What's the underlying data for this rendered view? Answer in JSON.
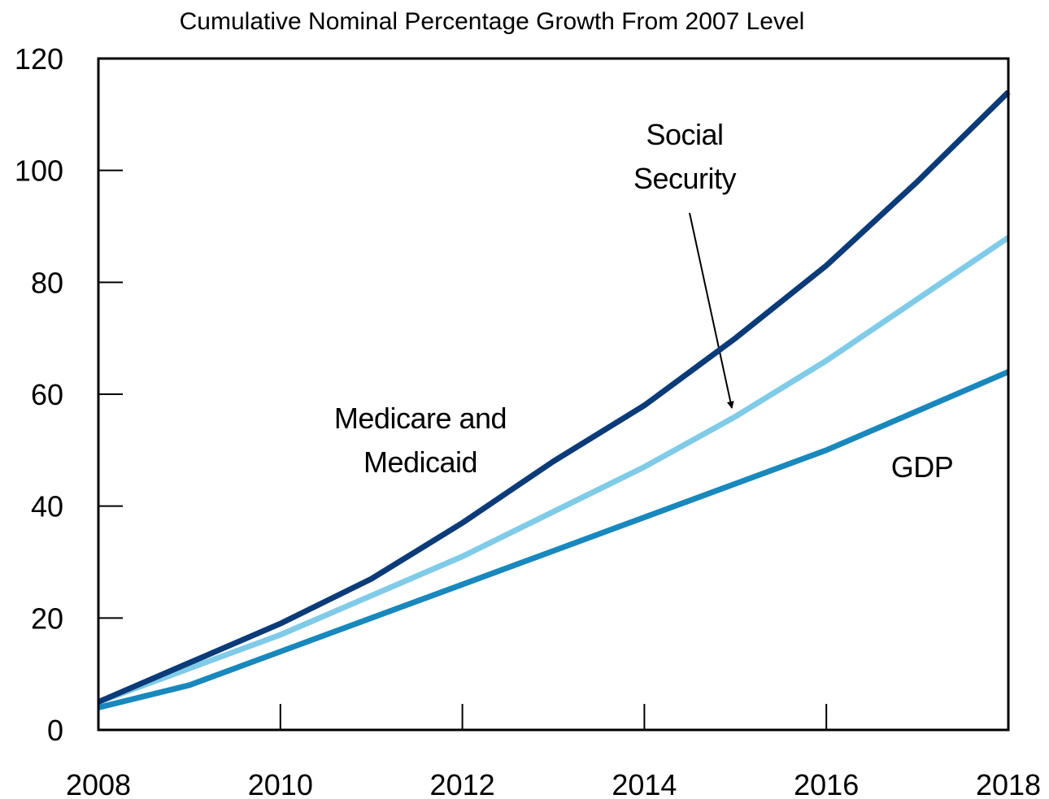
{
  "chart_data": {
    "type": "line",
    "title": "Cumulative Nominal Percentage Growth From 2007 Level",
    "x": [
      2008,
      2009,
      2010,
      2011,
      2012,
      2013,
      2014,
      2015,
      2016,
      2017,
      2018
    ],
    "xlim": [
      2008,
      2018
    ],
    "xticks": [
      2008,
      2010,
      2012,
      2014,
      2016,
      2018
    ],
    "ylim": [
      0,
      120
    ],
    "yticks": [
      0,
      20,
      40,
      60,
      80,
      100,
      120
    ],
    "grid": false,
    "series": [
      {
        "name": "Medicare and Medicaid",
        "color": "#0b3b78",
        "values": [
          5,
          12,
          19,
          27,
          37,
          48,
          58,
          70,
          83,
          98,
          114
        ]
      },
      {
        "name": "Social Security",
        "color": "#7fcbe8",
        "values": [
          5,
          11,
          17,
          24,
          31,
          39,
          47,
          56,
          66,
          77,
          88
        ]
      },
      {
        "name": "GDP",
        "color": "#1888bd",
        "values": [
          4,
          8,
          14,
          20,
          26,
          32,
          38,
          44,
          50,
          57,
          64
        ]
      }
    ]
  }
}
